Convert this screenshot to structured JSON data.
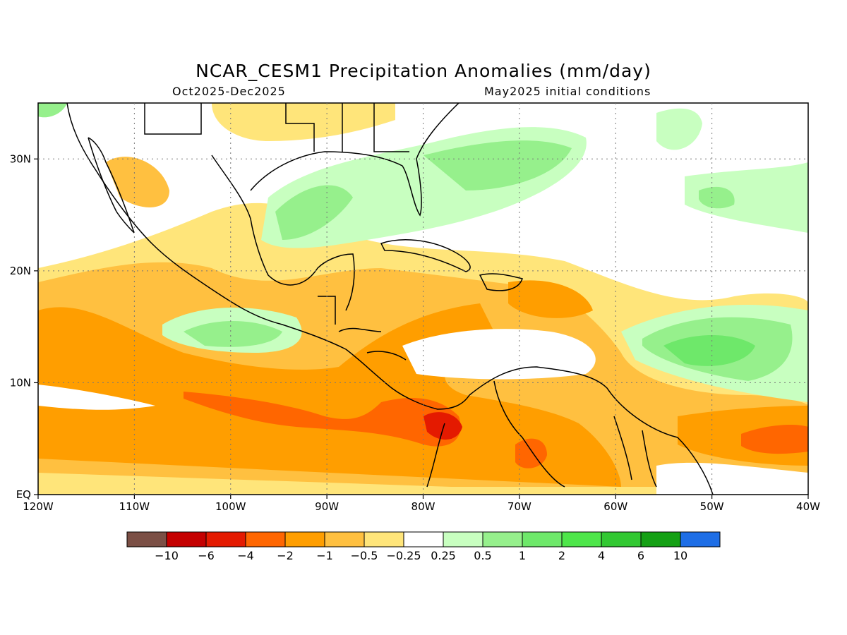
{
  "header": {
    "title": "NCAR_CESM1 Precipitation Anomalies (mm/day)",
    "period": "Oct2025-Dec2025",
    "init": "May2025 initial conditions"
  },
  "map": {
    "lon_range": [
      -120,
      -40
    ],
    "lat_range": [
      0,
      35
    ],
    "lon_ticks": [
      {
        "value": -120,
        "label": "120W"
      },
      {
        "value": -110,
        "label": "110W"
      },
      {
        "value": -100,
        "label": "100W"
      },
      {
        "value": -90,
        "label": "90W"
      },
      {
        "value": -80,
        "label": "80W"
      },
      {
        "value": -70,
        "label": "70W"
      },
      {
        "value": -60,
        "label": "60W"
      },
      {
        "value": -50,
        "label": "50W"
      },
      {
        "value": -40,
        "label": "40W"
      }
    ],
    "lat_ticks": [
      {
        "value": 0,
        "label": "EQ"
      },
      {
        "value": 10,
        "label": "10N"
      },
      {
        "value": 20,
        "label": "20N"
      },
      {
        "value": 30,
        "label": "30N"
      }
    ],
    "grid": true
  },
  "colorbar": {
    "colors": [
      "#7b4f45",
      "#c40000",
      "#e41a00",
      "#ff6600",
      "#ff9e00",
      "#ffc040",
      "#ffe57a",
      "#ffffff",
      "#c8ffc0",
      "#96f08c",
      "#6ee86a",
      "#4ee64a",
      "#32c832",
      "#14a014",
      "#1e6ee6"
    ],
    "labels": [
      "-10",
      "-6",
      "-4",
      "-2",
      "-1",
      "-0.5",
      "-0.25",
      "0.25",
      "0.5",
      "1",
      "2",
      "4",
      "6",
      "10"
    ]
  }
}
